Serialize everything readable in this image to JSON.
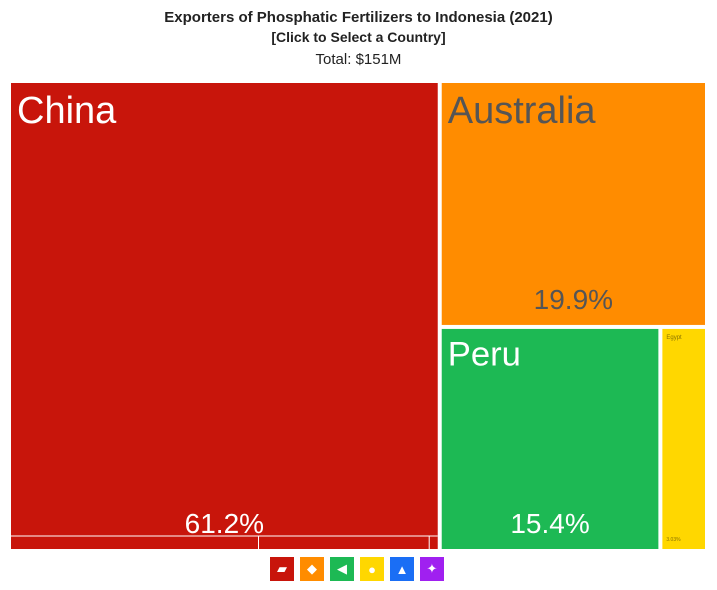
{
  "header": {
    "title": "Exporters of Phosphatic Fertilizers to Indonesia (2021)",
    "subtitle": "[Click to Select a Country]",
    "total": "Total: $151M"
  },
  "chart_data": {
    "type": "treemap",
    "total": "$151M",
    "items": [
      {
        "name": "China",
        "share": 61.2,
        "label": "61.2%",
        "color": "#c8150b",
        "text_color": "#ffffff"
      },
      {
        "name": "Australia",
        "share": 19.9,
        "label": "19.9%",
        "color": "#ff8c00",
        "text_color": "#555555"
      },
      {
        "name": "Peru",
        "share": 15.4,
        "label": "15.4%",
        "color": "#1db954",
        "text_color": "#ffffff"
      },
      {
        "name": "Egypt",
        "share": 3.03,
        "label": "3.03%",
        "color": "#ffd700",
        "text_color": "#8a7300"
      }
    ]
  },
  "legend": {
    "items": [
      {
        "region": "asia",
        "icon": "asia-icon",
        "color": "#c8150b",
        "glyph": "▰"
      },
      {
        "region": "oceania",
        "icon": "oceania-icon",
        "color": "#ff8c00",
        "glyph": "◆"
      },
      {
        "region": "south-america",
        "icon": "south-america-icon",
        "color": "#1db954",
        "glyph": "◀"
      },
      {
        "region": "africa",
        "icon": "africa-icon",
        "color": "#ffd700",
        "glyph": "●"
      },
      {
        "region": "north-america",
        "icon": "north-america-icon",
        "color": "#1a6ef5",
        "glyph": "▲"
      },
      {
        "region": "europe",
        "icon": "europe-icon",
        "color": "#a020f0",
        "glyph": "✦"
      }
    ]
  }
}
